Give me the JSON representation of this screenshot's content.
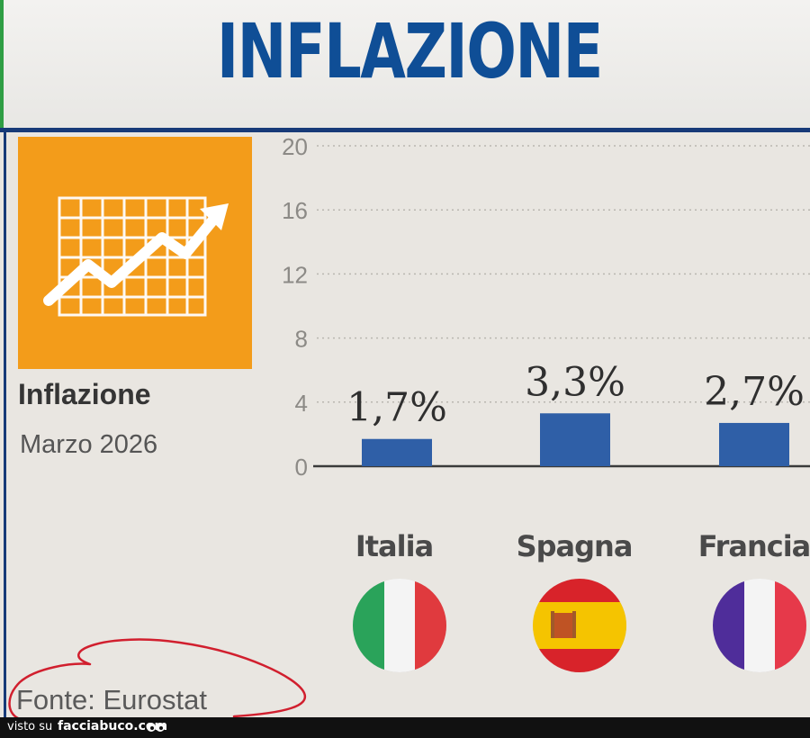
{
  "headline": "INFLAZIONE",
  "side_panel": {
    "icon": "chart-trend-up-icon",
    "title": "Inflazione",
    "subtitle": "Marzo 2026"
  },
  "chart_data": {
    "type": "bar",
    "categories": [
      "Italia",
      "Spagna",
      "Francia"
    ],
    "values": [
      1.7,
      3.3,
      2.7
    ],
    "value_labels": [
      "1,7%",
      "3,3%",
      "2,7%"
    ],
    "ylim": [
      0,
      20
    ],
    "y_ticks": [
      "0",
      "4",
      "8",
      "12",
      "16",
      "20"
    ],
    "grid": true,
    "bar_color": "#2f5fa7",
    "title": "",
    "xlabel": "",
    "ylabel": ""
  },
  "countries": [
    {
      "name": "Italia",
      "flag_icon": "italy-flag-icon"
    },
    {
      "name": "Spagna",
      "flag_icon": "spain-flag-icon"
    },
    {
      "name": "Francia",
      "flag_icon": "france-flag-icon"
    }
  ],
  "source": "Fonte: Eurostat",
  "footer": {
    "visto_su": "visto su",
    "site": "facciabuco.com"
  },
  "colors": {
    "headline": "#0f4e96",
    "panel": "#f39c1a",
    "rule": "#173a78"
  }
}
